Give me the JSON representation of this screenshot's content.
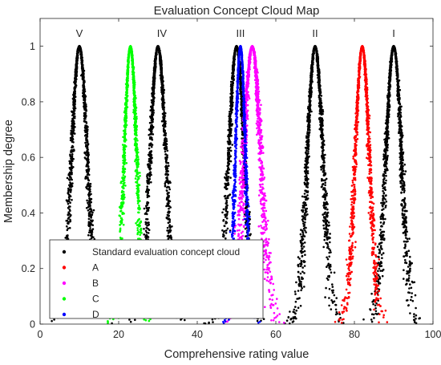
{
  "chart_data": {
    "type": "scatter",
    "title": "Evaluation Concept Cloud Map",
    "xlabel": "Comprehensive rating value",
    "ylabel": "Membership degree",
    "xlim": [
      0,
      100
    ],
    "ylim": [
      0,
      1.1
    ],
    "x_ticks": [
      0,
      20,
      40,
      60,
      80,
      100
    ],
    "y_ticks": [
      0,
      0.2,
      0.4,
      0.6,
      0.8,
      1
    ],
    "x_tick_labels": [
      "0",
      "20",
      "40",
      "60",
      "80",
      "100"
    ],
    "y_tick_labels": [
      "0",
      "0.2",
      "0.4",
      "0.6",
      "0.8",
      "1"
    ],
    "grid": false,
    "legend_position": "lower-left",
    "grade_labels": [
      {
        "text": "V",
        "x": 10
      },
      {
        "text": "IV",
        "x": 31
      },
      {
        "text": "III",
        "x": 51
      },
      {
        "text": "II",
        "x": 70
      },
      {
        "text": "I",
        "x": 90
      }
    ],
    "series": [
      {
        "name": "Standard evaluation concept cloud",
        "color": "#000000",
        "clouds": [
          {
            "Ex": 10,
            "En": 2.0,
            "He": 0.25
          },
          {
            "Ex": 30,
            "En": 2.0,
            "He": 0.25
          },
          {
            "Ex": 50,
            "En": 2.0,
            "He": 0.25
          },
          {
            "Ex": 70,
            "En": 2.0,
            "He": 0.25
          },
          {
            "Ex": 90,
            "En": 2.0,
            "He": 0.25
          }
        ]
      },
      {
        "name": "A",
        "color": "#ff0000",
        "clouds": [
          {
            "Ex": 82,
            "En": 1.8,
            "He": 0.22
          }
        ]
      },
      {
        "name": "B",
        "color": "#ff00ff",
        "clouds": [
          {
            "Ex": 54,
            "En": 2.2,
            "He": 0.35
          }
        ]
      },
      {
        "name": "C",
        "color": "#00ff00",
        "clouds": [
          {
            "Ex": 23,
            "En": 1.6,
            "He": 0.2
          }
        ]
      },
      {
        "name": "D",
        "color": "#0000ff",
        "clouds": [
          {
            "Ex": 51,
            "En": 1.3,
            "He": 0.15
          }
        ]
      }
    ]
  }
}
